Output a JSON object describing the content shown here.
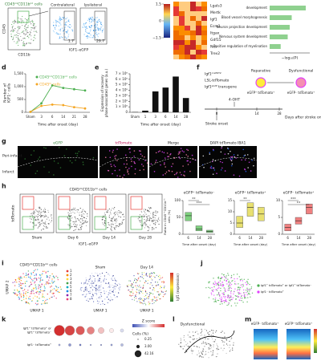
{
  "panel_letters": [
    "d",
    "e",
    "f",
    "g",
    "h",
    "i",
    "j",
    "k",
    "l",
    "m"
  ],
  "panels": {
    "a": {
      "gate_title": "CD45ⁱⁿᵗCD11bⁱⁿᵗ cells",
      "y_label": "CD45",
      "x_label": "CD11b",
      "plot_titles": [
        "Contralateral",
        "Ipsilateral"
      ],
      "gate_percents": [
        "1.7",
        "29.7"
      ],
      "plot_x_label": "IGF1–eGFP"
    },
    "b": {
      "colorbar_lim": [
        -1.5,
        1.5
      ],
      "colorbar_ticks": [
        1.5,
        0,
        {
          "value": -1.5,
          "label": "−1.5"
        }
      ]
    },
    "c": {
      "genes": [
        "Lgals3",
        "Mertk",
        "Igf1",
        "Ecm1",
        "Itgax",
        "Gdf15",
        "Nes",
        "Trex2"
      ],
      "terms": [
        "development",
        "Blood vessel morphogenesis",
        "Neuron projection development",
        "Nervous system development",
        "Positive regulation of myelination"
      ],
      "values": [
        3.6,
        2.2,
        2.0,
        1.8,
        1.1
      ],
      "xlim": [
        0,
        4
      ],
      "x_label": "−log₁₀(P)",
      "color": "#8fd18f"
    },
    "d": {
      "type": "line",
      "categories": [
        "Sham",
        "3",
        "6",
        "14",
        "21",
        "28"
      ],
      "series": [
        {
          "name": "CD45ⁱⁿᵗCD11bⁱⁿᵗ cells",
          "color": "#4caf50",
          "values": [
            20,
            350,
            1050,
            950,
            900,
            850
          ]
        },
        {
          "name": "CD45ʰⁱ cells",
          "color": "#f5a623",
          "values": [
            20,
            250,
            300,
            280,
            200,
            150
          ]
        }
      ],
      "ylim": [
        0,
        1500
      ],
      "yticks": [
        0,
        500,
        {
          "value": 1000,
          "label": "1,000"
        },
        {
          "value": 1500,
          "label": "1,500"
        }
      ],
      "y_label": [
        "Number of",
        "IGF1⁺ cells"
      ],
      "x_label": "Time after onset (day)"
    },
    "e": {
      "type": "bar",
      "categories": [
        "Sham",
        "1",
        "3",
        "6",
        "14",
        "28"
      ],
      "values": [
        5000,
        30000,
        380000,
        450000,
        650000,
        260000
      ],
      "color": "#111111",
      "ylim": [
        0,
        700000
      ],
      "yticks": [
        0,
        {
          "value": 100000,
          "label": "1 × 10⁵"
        },
        {
          "value": 200000,
          "label": "2 × 10⁵"
        },
        {
          "value": 300000,
          "label": "3 × 10⁵"
        },
        {
          "value": 400000,
          "label": "4 × 10⁵"
        },
        {
          "value": 500000,
          "label": "5 × 10⁵"
        },
        {
          "value": 600000,
          "label": "6 × 10⁵"
        },
        {
          "value": 700000,
          "label": "7 × 10⁵"
        }
      ],
      "y_label": [
        "Expression of recovery",
        "phase-associated genes (a.u.)"
      ],
      "x_label": "Time after onset (day)"
    },
    "f": {
      "genotype": [
        "Igf1ᶜʳᵉᴱᴿᵀ²",
        "LSL-tdTomato",
        "Igf1ᵉᴳᶠᴾ transgene"
      ],
      "states": [
        "Reparative",
        "Dysfunctional"
      ],
      "cell_labels": [
        "eGFP⁺ tdTomato⁺",
        "eGFP⁻ tdTomato⁺"
      ],
      "timeline_labels": [
        "Stroke onset",
        "4-OHT"
      ],
      "timeline_days": [
        "0",
        "14",
        "28"
      ],
      "timeline_caption": "Days after stroke onset"
    },
    "g": {
      "channels": [
        "eGFP",
        "tdTomato",
        "Merge",
        "DAPI tdTomato IBA1"
      ],
      "regions": [
        "Peri-infarct",
        "Infarct"
      ]
    },
    "h": {
      "title": "CD45ⁱⁿᵗCD11bⁱⁿᵗ cells",
      "conditions": [
        "Sham",
        "Day 6",
        "Day 14",
        "Day 28"
      ],
      "y_label": "tdTomato",
      "x_label": "IGF1–eGFP",
      "box_y_label": [
        "Ratio in CD45ⁱⁿᵗCD11bⁱⁿᵗ",
        "cells (%)"
      ],
      "boxes": [
        {
          "type": "box",
          "title": "eGFP⁺ tdTomato⁻",
          "color": "#7fd07f",
          "categories": [
            "6",
            "14",
            "28"
          ],
          "q1": [
            40,
            10,
            5
          ],
          "median": [
            55,
            15,
            8
          ],
          "q3": [
            65,
            25,
            12
          ],
          "ylim": [
            0,
            100
          ],
          "yticks": [
            0,
            50,
            100
          ],
          "x_label": "Time after onset (day)",
          "significance": [
            "**",
            "***"
          ]
        },
        {
          "type": "box",
          "title": "eGFP⁺ tdTomato⁺",
          "color": "#e8e070",
          "categories": [
            "6",
            "14",
            "28"
          ],
          "q1": [
            3,
            8,
            6
          ],
          "median": [
            5,
            12,
            9
          ],
          "q3": [
            8,
            14,
            12
          ],
          "ylim": [
            0,
            15
          ],
          "yticks": [
            0,
            5,
            10,
            15
          ],
          "x_label": "Time after onset (day)",
          "significance": [
            "**"
          ]
        },
        {
          "type": "box",
          "title": "eGFP⁻ tdTomato⁺",
          "color": "#f08080",
          "categories": [
            "6",
            "14",
            "28"
          ],
          "q1": [
            1,
            3,
            6
          ],
          "median": [
            2,
            4,
            8
          ],
          "q3": [
            3,
            5,
            9
          ],
          "ylim": [
            0,
            10
          ],
          "yticks": [
            0,
            5,
            10
          ],
          "x_label": "Time after onset (day)",
          "significance": [
            "***",
            "**"
          ]
        }
      ]
    },
    "i": {
      "title": "CD45ⁱⁿᵗCD11bⁱⁿᵗ cells",
      "umap_titles": [
        "Sham",
        "Day 14"
      ],
      "x_label": "UMAP 1",
      "y_label": "UMAP 2",
      "clusters": [
        "1",
        "2",
        "3",
        "4",
        "5",
        "6",
        "7",
        "8"
      ],
      "colorbar_title": "Igf1 (expression)"
    },
    "j": {
      "legend": [
        "Igf1⁺ tdTomato⁺ or Igf1⁺ tdTomato⁻",
        "Igf1⁻ tdTomato⁺"
      ],
      "colors": [
        "#4caf50",
        "#e040fb"
      ]
    },
    "k": {
      "rows": [
        [
          "Igf1⁺ tdTomato⁺ or",
          "Igf1⁺ tdTomato⁻"
        ],
        [
          "Igf1⁻ tdTomato⁺"
        ]
      ],
      "cells": [
        [
          30,
          25,
          20,
          15,
          10,
          5,
          3
        ],
        [
          1,
          2,
          1,
          0.5,
          0.5,
          1,
          2
        ]
      ],
      "zscore": [
        [
          1,
          0.9,
          0.8,
          0.6,
          0.3,
          0.1,
          -0.2
        ],
        [
          -0.5,
          -0.6,
          -0.8,
          -0.7,
          -0.9,
          -0.6,
          -0.4
        ]
      ],
      "zscore_title": "Z score",
      "zscore_lim": [
        -1,
        1
      ],
      "size_title": "Cells (%)",
      "size_legend": [
        0.25,
        {
          "value": 3,
          "label": "3.00"
        },
        42.16
      ]
    },
    "l": {
      "label": "Dysfunctional"
    },
    "m": {
      "column_titles": [
        "eGFP⁻ tdTomato⁺",
        "eGFP⁺ tdTomato⁺"
      ]
    }
  }
}
